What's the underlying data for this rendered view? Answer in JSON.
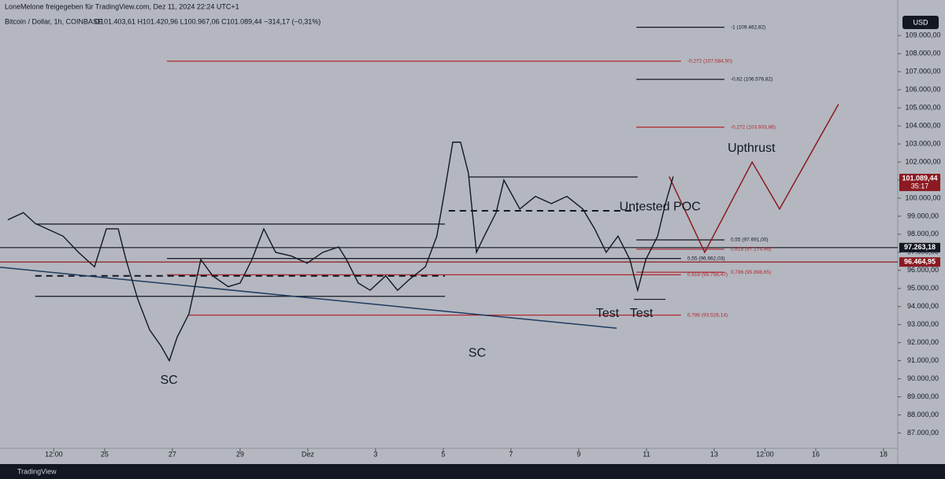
{
  "header": {
    "title": "LoneMelone freigegeben für TradingView.com, Dez 11, 2024 22:24 UTC+1",
    "symbol": "Bitcoin / Dollar, 1h, COINBASE",
    "ohlc": "O101.403,61 H101.420,96 L100.967,06 C101.089,44 −314,17 (−0,31%)"
  },
  "chart_data": {
    "type": "line",
    "currency": "USD",
    "brand": "TradingView",
    "x": [
      -2.86,
      -2.4,
      -2.05,
      -1.7,
      -1.23,
      -0.77,
      -0.3,
      0.05,
      0.4,
      0.63,
      0.98,
      1.33,
      1.67,
      1.91,
      2.14,
      2.49,
      2.84,
      3.19,
      3.65,
      4.0,
      4.35,
      4.7,
      5.05,
      5.51,
      5.98,
      6.44,
      6.91,
      7.14,
      7.49,
      7.84,
      8.3,
      8.65,
      9.0,
      9.47,
      9.81,
      10.05,
      10.28,
      10.51,
      10.74,
      10.98,
      11.21,
      11.56,
      11.79,
      12.26,
      12.72,
      13.19,
      13.65,
      14.12,
      14.47,
      14.81,
      15.16,
      15.51,
      15.74,
      15.98,
      16.33,
      16.56,
      16.79
    ],
    "series": [
      {
        "name": "Bitcoin / Dollar",
        "color": "#131722",
        "values": [
          98800,
          99200,
          98600,
          98300,
          97900,
          97000,
          96200,
          98300,
          98300,
          96600,
          94400,
          92700,
          91800,
          91000,
          92300,
          93600,
          96600,
          95700,
          95100,
          95300,
          96600,
          98300,
          97000,
          96800,
          96400,
          97000,
          97300,
          96600,
          95300,
          94900,
          95700,
          94900,
          95500,
          96200,
          97900,
          100500,
          103100,
          103100,
          101400,
          97000,
          97900,
          99200,
          101000,
          99400,
          100100,
          99700,
          100100,
          99400,
          98300,
          97000,
          97900,
          96600,
          94900,
          96600,
          97900,
          99700,
          101200
        ]
      }
    ],
    "xlim": [
      -3.09,
      23.42
    ],
    "ylim": [
      86150,
      110100
    ],
    "xticks": [
      {
        "value": -1.5,
        "label": "12:00"
      },
      {
        "value": 0,
        "label": "25"
      },
      {
        "value": 2,
        "label": "27"
      },
      {
        "value": 4,
        "label": "29"
      },
      {
        "value": 6,
        "label": "Dez"
      },
      {
        "value": 8,
        "label": "3"
      },
      {
        "value": 10,
        "label": "5"
      },
      {
        "value": 12,
        "label": "7"
      },
      {
        "value": 14,
        "label": "9"
      },
      {
        "value": 16,
        "label": "11"
      },
      {
        "value": 18,
        "label": "13"
      },
      {
        "value": 19.5,
        "label": "12:00"
      },
      {
        "value": 21,
        "label": "16"
      },
      {
        "value": 23,
        "label": "18"
      }
    ],
    "yticks": [
      {
        "value": 87000,
        "label": "87.000,00"
      },
      {
        "value": 88000,
        "label": "88.000,00"
      },
      {
        "value": 89000,
        "label": "89.000,00"
      },
      {
        "value": 90000,
        "label": "90.000,00"
      },
      {
        "value": 91000,
        "label": "91.000,00"
      },
      {
        "value": 92000,
        "label": "92.000,00"
      },
      {
        "value": 93000,
        "label": "93.000,00"
      },
      {
        "value": 94000,
        "label": "94.000,00"
      },
      {
        "value": 95000,
        "label": "95.000,00"
      },
      {
        "value": 96000,
        "label": "96.000,00"
      },
      {
        "value": 97000,
        "label": "97.000,00"
      },
      {
        "value": 98000,
        "label": "98.000,00"
      },
      {
        "value": 99000,
        "label": "99.000,00"
      },
      {
        "value": 100000,
        "label": "100.000,00"
      },
      {
        "value": 101000,
        "label": "101.000,00"
      },
      {
        "value": 102000,
        "label": "102.000,00"
      },
      {
        "value": 103000,
        "label": "103.000,00"
      },
      {
        "value": 104000,
        "label": "104.000,00"
      },
      {
        "value": 105000,
        "label": "105.000,00"
      },
      {
        "value": 106000,
        "label": "106.000,00"
      },
      {
        "value": 107000,
        "label": "107.000,00"
      },
      {
        "value": 108000,
        "label": "108.000,00"
      },
      {
        "value": 109000,
        "label": "109.000,00"
      }
    ],
    "levels": [
      {
        "price": 109462.82,
        "from": 15.7,
        "to": 18.3,
        "color": "#131722",
        "label": "-1 (109.462,82)"
      },
      {
        "price": 107584.5,
        "from": 1.84,
        "to": 17.02,
        "color": "#b22833",
        "label": "-0,272 (107.584,50)"
      },
      {
        "price": 106576.82,
        "from": 15.7,
        "to": 18.3,
        "color": "#131722",
        "label": "-0,62 (106.576,82)"
      },
      {
        "price": 103933.86,
        "from": 15.7,
        "to": 18.3,
        "color": "#b22833",
        "label": "-0,272 (103.933,86)"
      },
      {
        "price": 101174,
        "from": 10.74,
        "to": 15.74,
        "color": "#131722"
      },
      {
        "price": 98565,
        "from": -2.05,
        "to": 10.05,
        "color": "#131722"
      },
      {
        "price": 97691,
        "from": 15.7,
        "to": 18.3,
        "color": "#131722",
        "label": "0,55 (97.691,00)"
      },
      {
        "price": 97263.18,
        "from": -3.09,
        "to": 23.42,
        "color": "#131722"
      },
      {
        "price": 97174.96,
        "from": 15.7,
        "to": 18.3,
        "color": "#b22833",
        "label": "0,618 (97.174,96)"
      },
      {
        "price": 96662.03,
        "from": 1.84,
        "to": 17.02,
        "color": "#131722",
        "label": "0,55 (96.662,03)"
      },
      {
        "price": 96464.95,
        "from": -3.09,
        "to": 23.42,
        "color": "#8b1a22"
      },
      {
        "price": 95898.65,
        "from": 15.7,
        "to": 18.3,
        "color": "#b22833",
        "label": "0,786 (95.898,65)"
      },
      {
        "price": 95756.47,
        "from": 1.84,
        "to": 17.02,
        "color": "#b22833",
        "label": "0,618 (95.756,47)"
      },
      {
        "price": 94565,
        "from": -2.05,
        "to": 10.05,
        "color": "#131722"
      },
      {
        "price": 94400,
        "from": 15.63,
        "to": 16.56,
        "color": "#131722"
      },
      {
        "price": 93526.14,
        "from": 2.49,
        "to": 17.02,
        "color": "#b22833",
        "label": "0,786 (93.526,14)"
      }
    ],
    "poc": [
      {
        "price": 95700,
        "from": -2.05,
        "to": 10.05
      },
      {
        "price": 99300,
        "from": 10.16,
        "to": 15.74
      }
    ],
    "trendline": {
      "x": [
        -3.09,
        15.12
      ],
      "values": [
        96174,
        92800
      ],
      "color": "#1e3a5f"
    },
    "projection": {
      "x": [
        16.67,
        17.72,
        19.12,
        19.93,
        21.67
      ],
      "values": [
        101200,
        97000,
        102000,
        99400,
        105200
      ],
      "color": "#8b1a22"
    },
    "annotations": [
      {
        "text": "Upthrust",
        "x": 19.1,
        "y": 102750
      },
      {
        "text": "Untested POC",
        "x": 16.4,
        "y": 99500
      },
      {
        "text": "Test",
        "x": 14.85,
        "y": 93600
      },
      {
        "text": "Test",
        "x": 15.85,
        "y": 93600
      },
      {
        "text": "SC",
        "x": 1.9,
        "y": 89900
      },
      {
        "text": "SC",
        "x": 11.0,
        "y": 91400
      }
    ],
    "price_tags": [
      {
        "value": 101089.44,
        "label": "101.089,44",
        "sub": "35:17",
        "color": "#8b1a22"
      },
      {
        "value": 97263.18,
        "label": "97.263,18",
        "color": "#131722"
      },
      {
        "value": 96464.95,
        "label": "96.464,95",
        "color": "#8b1a22"
      }
    ]
  }
}
